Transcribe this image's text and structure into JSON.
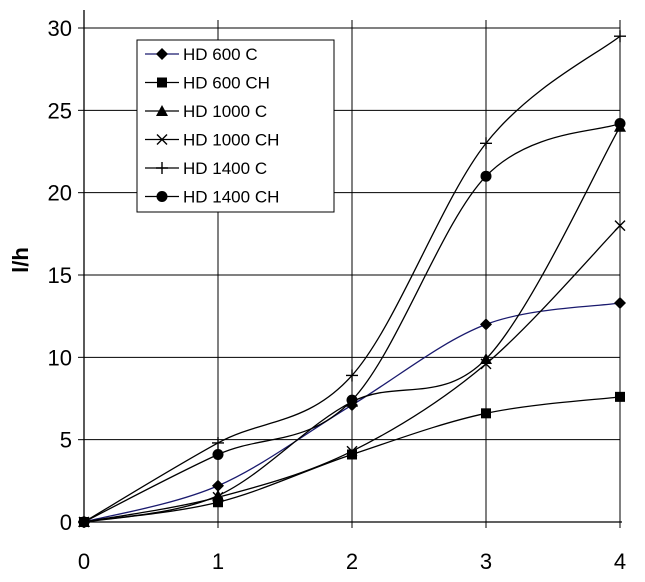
{
  "chart_data": {
    "type": "line",
    "title": "",
    "xlabel": "",
    "ylabel": "l/h",
    "x": [
      0,
      1,
      2,
      3,
      4
    ],
    "xlim": [
      0,
      4
    ],
    "ylim": [
      0,
      30
    ],
    "x_ticks": [
      "0",
      "1",
      "2",
      "3",
      "4"
    ],
    "y_ticks": [
      "0",
      "5",
      "10",
      "15",
      "20",
      "25",
      "30"
    ],
    "grid": true,
    "legend_position": "top-left",
    "series": [
      {
        "name": "HD 600 C",
        "values": [
          0,
          2.2,
          7.1,
          12.0,
          13.3
        ],
        "marker": "diamond",
        "color": "#1a1a6e"
      },
      {
        "name": "HD 600 CH",
        "values": [
          0,
          1.2,
          4.1,
          6.6,
          7.6
        ],
        "marker": "square",
        "color": "#000000"
      },
      {
        "name": "HD 1000 C",
        "values": [
          0,
          1.6,
          7.3,
          9.9,
          24.0
        ],
        "marker": "triangle",
        "color": "#000000"
      },
      {
        "name": "HD 1000 CH",
        "values": [
          0,
          1.5,
          4.3,
          9.6,
          18.0
        ],
        "marker": "x",
        "color": "#000000"
      },
      {
        "name": "HD 1400 C",
        "values": [
          0,
          4.8,
          8.9,
          23.0,
          29.5
        ],
        "marker": "plus",
        "color": "#000000"
      },
      {
        "name": "HD 1400 CH",
        "values": [
          0,
          4.1,
          7.4,
          21.0,
          24.2
        ],
        "marker": "circle",
        "color": "#000000"
      }
    ]
  }
}
